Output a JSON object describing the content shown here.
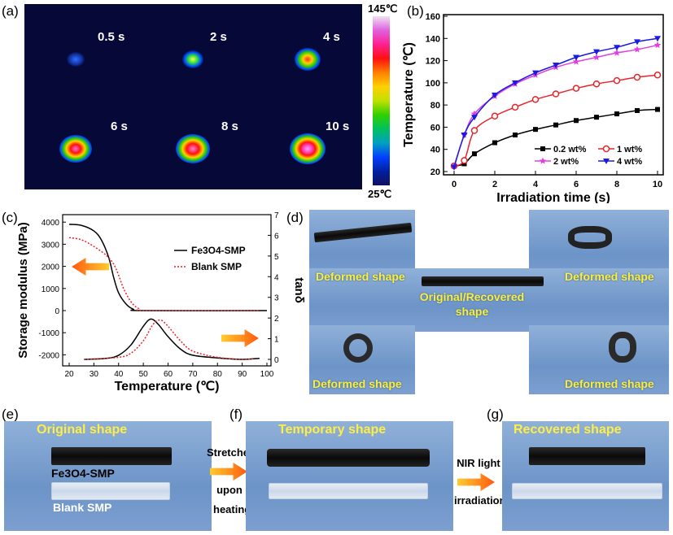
{
  "panels": {
    "a": "(a)",
    "b": "(b)",
    "c": "(c)",
    "d": "(d)",
    "e": "(e)",
    "f": "(f)",
    "g": "(g)"
  },
  "thermal": {
    "times": [
      "0.5 s",
      "2 s",
      "4 s",
      "6 s",
      "8 s",
      "10 s"
    ],
    "colorbar_max": "145℃",
    "colorbar_min": "25℃",
    "colorbar_colors": [
      "#f0e0f0",
      "#e060e0",
      "#ff2090",
      "#ff1010",
      "#ff8000",
      "#ffd000",
      "#30d000",
      "#00a0c0",
      "#0040ff",
      "#101060"
    ],
    "background": "#060838"
  },
  "chart_data": [
    {
      "panel": "b",
      "type": "line",
      "xlabel": "Irradiation time (s)",
      "ylabel": "Temperature (℃)",
      "xlim": [
        0,
        10
      ],
      "ylim": [
        20,
        160
      ],
      "xticks": [
        0,
        2,
        4,
        6,
        8,
        10
      ],
      "yticks": [
        20,
        40,
        60,
        80,
        100,
        120,
        140,
        160
      ],
      "legend": "bottom-right",
      "grid": false,
      "x": [
        0,
        0.5,
        1,
        2,
        3,
        4,
        5,
        6,
        7,
        8,
        9,
        10
      ],
      "series": [
        {
          "name": "0.2 wt%",
          "color": "#000000",
          "marker": "square",
          "values": [
            25,
            27,
            36,
            46,
            53,
            58,
            62,
            66,
            69,
            72,
            75,
            76
          ]
        },
        {
          "name": "1 wt%",
          "color": "#e8242a",
          "marker": "circle",
          "values": [
            25,
            30,
            57,
            70,
            78,
            85,
            90,
            95,
            99,
            102,
            105,
            107
          ]
        },
        {
          "name": "2 wt%",
          "color": "#e040e0",
          "marker": "star",
          "values": [
            25,
            53,
            72,
            88,
            99,
            107,
            114,
            119,
            123,
            127,
            130,
            134
          ]
        },
        {
          "name": "4 wt%",
          "color": "#1a1ae0",
          "marker": "triangle-down",
          "values": [
            24,
            53,
            69,
            89,
            100,
            109,
            116,
            123,
            128,
            132,
            137,
            140
          ]
        }
      ]
    },
    {
      "panel": "c",
      "type": "line",
      "xlabel": "Temperature (℃)",
      "ylabel": "Storage modulus (MPa)",
      "y2label": "tanδ",
      "xlim": [
        15,
        100
      ],
      "ylim": [
        -2500,
        4400
      ],
      "y2lim": [
        0,
        7
      ],
      "xticks": [
        20,
        30,
        40,
        50,
        60,
        70,
        80,
        90,
        100
      ],
      "yticks": [
        -2000,
        -1000,
        0,
        1000,
        2000,
        3000,
        4000
      ],
      "y2ticks": [
        0,
        1,
        2,
        3,
        4,
        5,
        6,
        7
      ],
      "legend": "top-right",
      "grid": false,
      "series": [
        {
          "name": "Fe3O4-SMP",
          "color": "#000000",
          "style": "solid",
          "axis": "left",
          "x": [
            20,
            25,
            30,
            33,
            36,
            38,
            40,
            43,
            46,
            50,
            100
          ],
          "values": [
            3900,
            3850,
            3600,
            3200,
            2400,
            1500,
            800,
            300,
            60,
            0,
            0
          ]
        },
        {
          "name": "Blank SMP",
          "color": "#e8242a",
          "style": "dotted",
          "axis": "left",
          "x": [
            20,
            25,
            30,
            35,
            38,
            40,
            42,
            45,
            48,
            52,
            97
          ],
          "values": [
            3300,
            3200,
            2900,
            2500,
            2100,
            1600,
            1000,
            400,
            100,
            0,
            0
          ]
        },
        {
          "name": "Fe3O4-SMP",
          "color": "#000000",
          "style": "solid",
          "axis": "right",
          "x": [
            26,
            35,
            40,
            45,
            50,
            53,
            56,
            60,
            65,
            70,
            80,
            90,
            97
          ],
          "values": [
            0,
            0.05,
            0.2,
            0.7,
            1.6,
            1.95,
            1.7,
            1.1,
            0.5,
            0.2,
            0.07,
            0,
            0.05
          ]
        },
        {
          "name": "Blank SMP",
          "color": "#e8242a",
          "style": "dotted",
          "axis": "right",
          "x": [
            26,
            40,
            45,
            50,
            54,
            57,
            60,
            65,
            70,
            80,
            90,
            95
          ],
          "values": [
            0,
            0.1,
            0.3,
            0.9,
            1.7,
            1.9,
            1.6,
            0.9,
            0.4,
            0.1,
            0,
            0.05
          ]
        }
      ]
    }
  ],
  "panel_c_legend": [
    "Fe3O4-SMP",
    "Blank SMP"
  ],
  "panel_d": {
    "deformed": "Deformed shape",
    "center": "Original/Recovered",
    "center2": "shape"
  },
  "panel_e": {
    "title": "Original shape",
    "label1": "Fe3O4-SMP",
    "label2": "Blank SMP"
  },
  "arrow1": {
    "l1": "Stretched",
    "l2": "upon",
    "l3": "heating"
  },
  "panel_f": {
    "title": "Temporary shape"
  },
  "arrow2": {
    "l1": "NIR light",
    "l2": "irradiation"
  },
  "panel_g": {
    "title": "Recovered shape"
  }
}
